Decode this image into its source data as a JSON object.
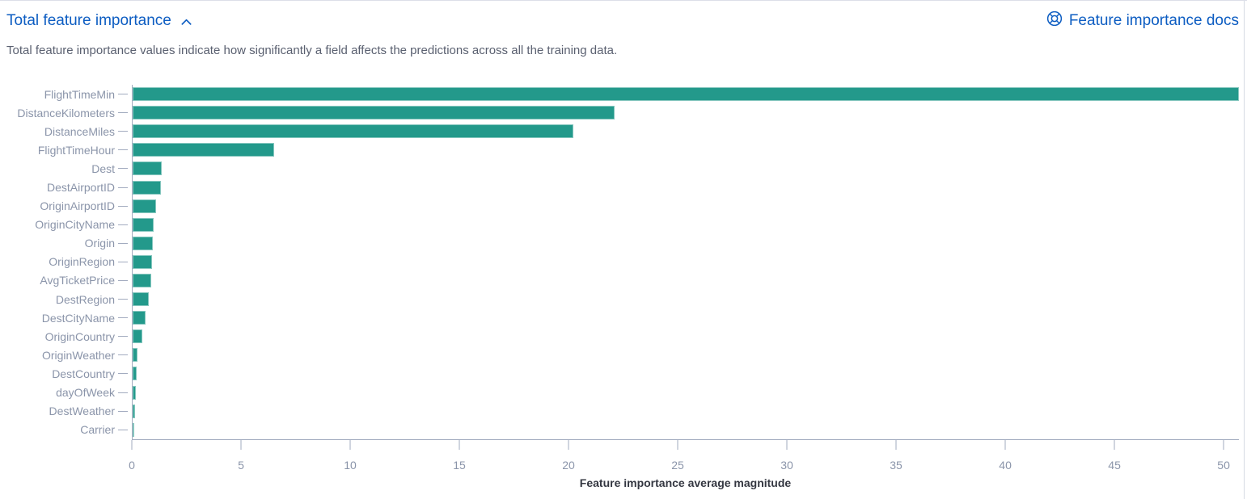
{
  "header": {
    "title": "Total feature importance",
    "docs_link": "Feature importance docs"
  },
  "description": "Total feature importance values indicate how significantly a field affects the predictions across all the training data.",
  "colors": {
    "link": "#0d5dc2",
    "bar": "#23998b",
    "axis_text": "#8b95aa",
    "line": "#a2abbf",
    "description_text": "#5a6070",
    "strong_text": "#343741"
  },
  "icons": {
    "collapse": "chevron-up-icon",
    "docs": "help-lifebuoy-icon"
  },
  "chart_data": {
    "type": "bar",
    "orientation": "horizontal",
    "title": "",
    "xlabel": "Feature importance average magnitude",
    "ylabel": "",
    "grid": false,
    "legend": false,
    "xlim": [
      0,
      50.7
    ],
    "xticks": [
      0,
      5,
      10,
      15,
      20,
      25,
      30,
      35,
      40,
      45,
      50
    ],
    "categories": [
      "FlightTimeMin",
      "DistanceKilometers",
      "DistanceMiles",
      "FlightTimeHour",
      "Dest",
      "DestAirportID",
      "OriginAirportID",
      "OriginCityName",
      "Origin",
      "OriginRegion",
      "AvgTicketPrice",
      "DestRegion",
      "DestCityName",
      "OriginCountry",
      "OriginWeather",
      "DestCountry",
      "dayOfWeek",
      "DestWeather",
      "Carrier"
    ],
    "values": [
      50.7,
      22.1,
      20.2,
      6.5,
      1.35,
      1.3,
      1.07,
      0.97,
      0.94,
      0.89,
      0.86,
      0.73,
      0.61,
      0.44,
      0.22,
      0.18,
      0.16,
      0.12,
      0.04
    ]
  }
}
